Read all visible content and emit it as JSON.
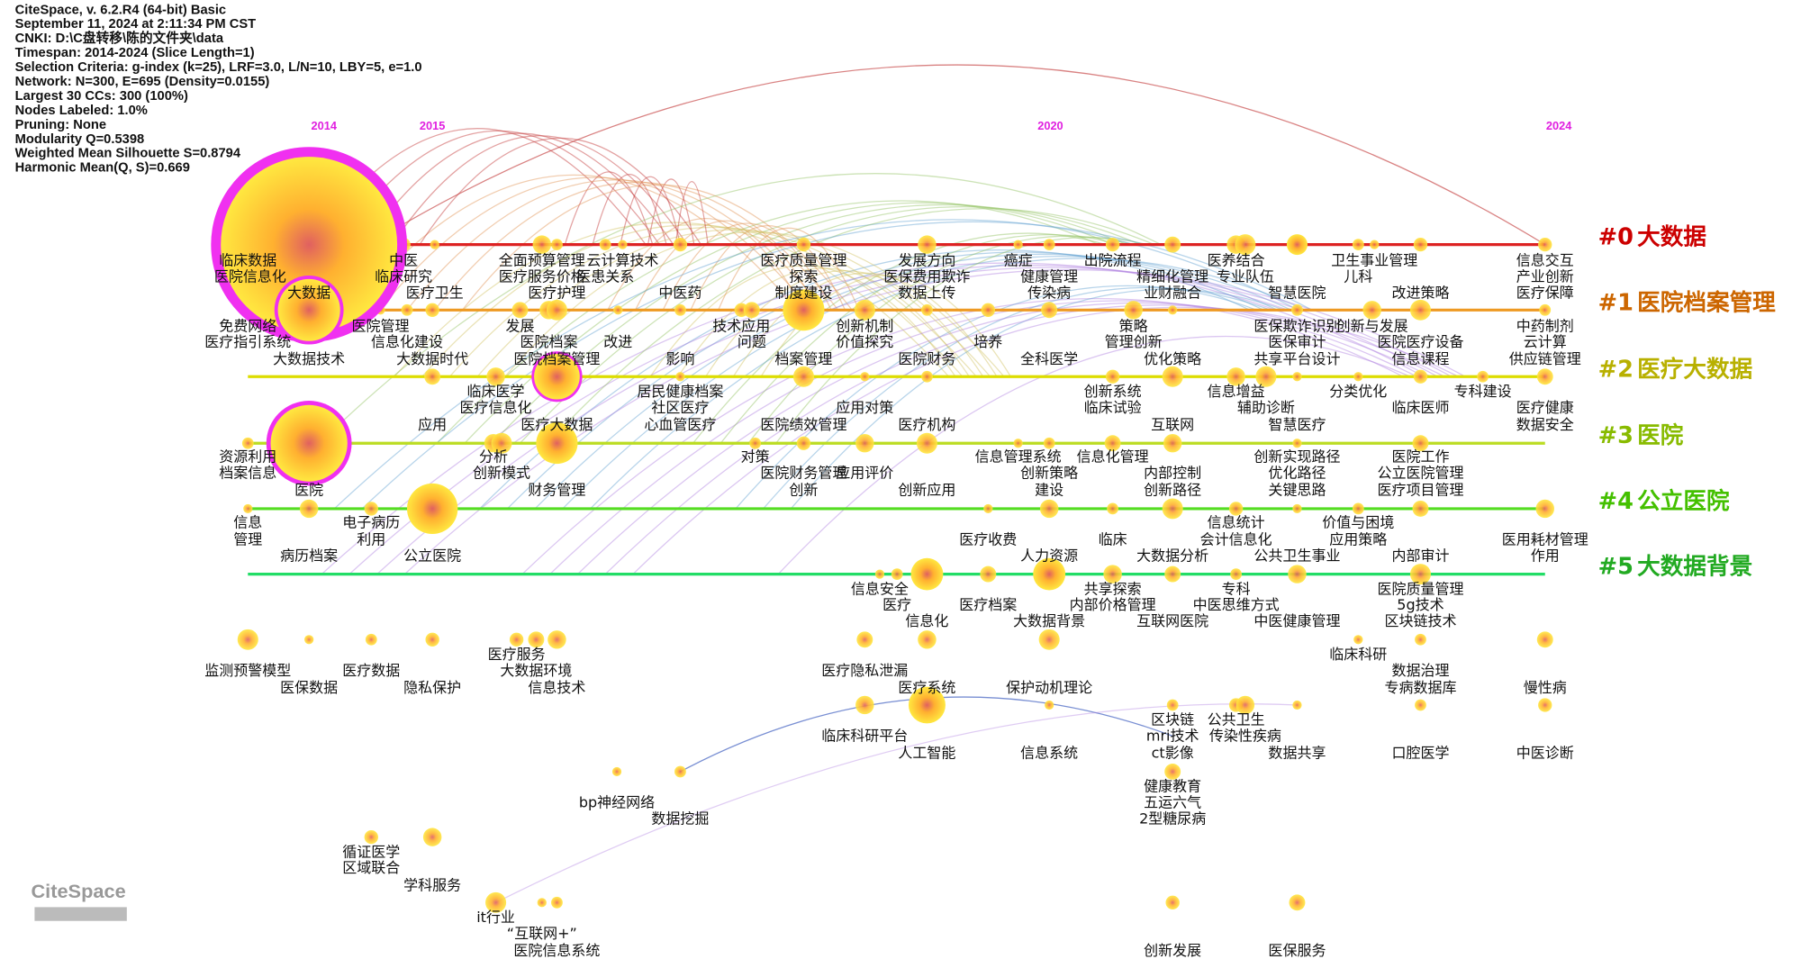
{
  "header": {
    "lines": [
      "CiteSpace, v. 6.2.R4 (64-bit) Basic",
      "September 11, 2024 at 2:11:34 PM CST",
      "CNKI: D:\\C盘转移\\陈的文件夹\\data",
      "Timespan: 2014-2024 (Slice Length=1)",
      "Selection Criteria: g-index (k=25), LRF=3.0, L/N=10, LBY=5, e=1.0",
      "Network: N=300, E=695 (Density=0.0155)",
      "Largest 30 CCs: 300 (100%)",
      "Nodes Labeled: 1.0%",
      "Pruning: None",
      "Modularity Q=0.5398",
      "Weighted Mean Silhouette S=0.8794",
      "Harmonic Mean(Q, S)=0.669"
    ]
  },
  "timeline": {
    "years": [
      "2014",
      "2015",
      "2020",
      "2024"
    ]
  },
  "clusters": [
    {
      "id": "#0",
      "label": "大数据"
    },
    {
      "id": "#1",
      "label": "医院档案管理"
    },
    {
      "id": "#2",
      "label": "医疗大数据"
    },
    {
      "id": "#3",
      "label": "医院"
    },
    {
      "id": "#4",
      "label": "公立医院"
    },
    {
      "id": "#5",
      "label": "大数据背景"
    }
  ],
  "keywords": [
    "临床数据",
    "医院信息化",
    "中医",
    "临床研究",
    "全面预算管理",
    "医疗服务价格",
    "云计算技术",
    "医患关系",
    "医疗质量管理",
    "探索",
    "发展方向",
    "医保费用欺诈",
    "癌症",
    "健康管理",
    "出院流程",
    "精细化管理",
    "医养结合",
    "专业队伍",
    "卫生事业管理",
    "儿科",
    "信息交互",
    "产业创新",
    "医疗保障",
    "大数据",
    "医疗卫生",
    "医疗护理",
    "中医药",
    "制度建设",
    "数据上传",
    "传染病",
    "业财融合",
    "智慧医院",
    "改进策略",
    "免费网络",
    "医疗指引系统",
    "大数据技术",
    "医院管理",
    "信息化建设",
    "大数据时代",
    "发展",
    "医院档案",
    "医院档案管理",
    "改进",
    "影响",
    "技术应用",
    "问题",
    "档案管理",
    "创新机制",
    "价值探究",
    "医院财务",
    "培养",
    "全科医学",
    "策略",
    "管理创新",
    "优化策略",
    "医保欺诈识别",
    "医保审计",
    "共享平台设计",
    "创新与发展",
    "医院医疗设备",
    "信息课程",
    "中药制剂",
    "云计算",
    "供应链管理",
    "临床医学",
    "医疗信息化",
    "居民健康档案",
    "社区医疗",
    "心血管医疗",
    "应用",
    "医疗大数据",
    "医院绩效管理",
    "应用对策",
    "医疗机构",
    "创新系统",
    "临床试验",
    "信息增益",
    "辅助诊断",
    "分类优化",
    "专科建设",
    "临床医师",
    "医疗健康",
    "数据安全",
    "互联网",
    "智慧医疗",
    "资源利用",
    "档案信息",
    "医院",
    "分析",
    "创新模式",
    "财务管理",
    "对策",
    "医院财务管理",
    "创新",
    "应用评价",
    "创新应用",
    "信息管理系统",
    "创新策略",
    "建设",
    "信息化管理",
    "内部控制",
    "创新路径",
    "创新实现路径",
    "优化路径",
    "关键思路",
    "医院工作",
    "公立医院管理",
    "医疗项目管理",
    "信息",
    "管理",
    "电子病历",
    "利用",
    "病历档案",
    "公立医院",
    "医疗收费",
    "临床",
    "信息统计",
    "会计信息化",
    "人力资源",
    "大数据分析",
    "公共卫生事业",
    "价值与困境",
    "应用策略",
    "内部审计",
    "医用耗材管理",
    "作用",
    "信息安全",
    "医疗",
    "信息化",
    "医疗档案",
    "共享探索",
    "内部价格管理",
    "大数据背景",
    "专科",
    "中医思维方式",
    "互联网医院",
    "中医健康管理",
    "医院质量管理",
    "5g技术",
    "区块链技术",
    "医疗服务",
    "大数据环境",
    "信息技术",
    "监测预警模型",
    "医保数据",
    "医疗数据",
    "隐私保护",
    "医疗隐私泄漏",
    "医疗系统",
    "保护动机理论",
    "临床科研",
    "数据治理",
    "专病数据库",
    "慢性病",
    "临床科研平台",
    "人工智能",
    "信息系统",
    "区块链",
    "公共卫生",
    "mri技术",
    "传染性疾病",
    "ct影像",
    "数据共享",
    "口腔医学",
    "中医诊断",
    "健康教育",
    "五运六气",
    "2型糖尿病",
    "bp神经网络",
    "数据挖掘",
    "循证医学",
    "区域联合",
    "学科服务",
    "it行业",
    "“互联网+”",
    "医院信息系统",
    "创新发展",
    "医保服务"
  ],
  "logo": "CiteSpace"
}
